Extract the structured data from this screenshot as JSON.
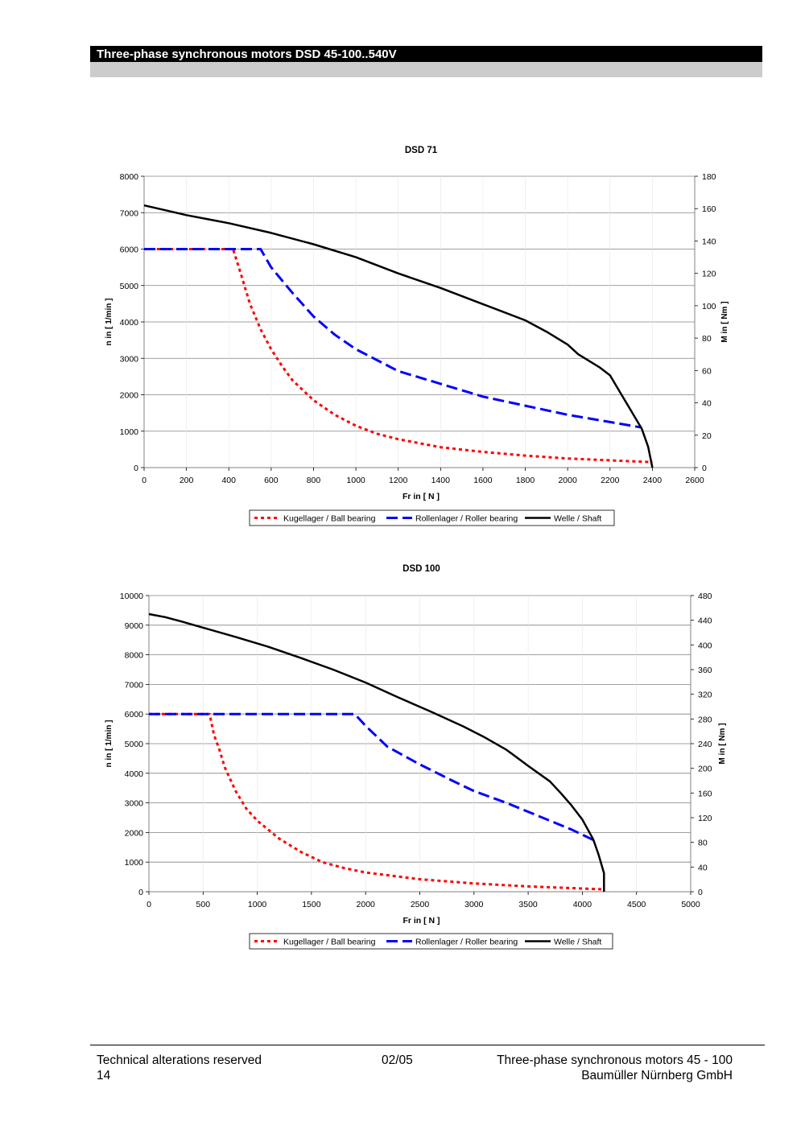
{
  "header": {
    "title": "Three-phase synchronous motors DSD 45-100..540V"
  },
  "footer": {
    "left_line1": "Technical alterations reserved",
    "left_line2": "14",
    "center": "02/05",
    "right_line1": "Three-phase synchronous motors 45 - 100",
    "right_line2": "Baumüller Nürnberg GmbH"
  },
  "colors": {
    "ball": "#ff0000",
    "roller": "#0000ff",
    "shaft": "#000000",
    "grid": "#808080"
  },
  "chart_data": [
    {
      "type": "line",
      "title": "DSD 71",
      "xlabel": "Fr in [ N ]",
      "ylabel": "n in [ 1/min ]",
      "y2label": "M in [ Nm ]",
      "xlim": [
        0,
        2600
      ],
      "ylim": [
        0,
        8000
      ],
      "y2lim": [
        0,
        180
      ],
      "xticks": [
        0,
        200,
        400,
        600,
        800,
        1000,
        1200,
        1400,
        1600,
        1800,
        2000,
        2200,
        2400,
        2600
      ],
      "yticks": [
        0,
        1000,
        2000,
        3000,
        4000,
        5000,
        6000,
        7000,
        8000
      ],
      "y2ticks": [
        0,
        20,
        40,
        60,
        80,
        100,
        120,
        140,
        160,
        180
      ],
      "grid": "horizontal",
      "legend": "bottom",
      "series": [
        {
          "name": "Kugellager / Ball bearing",
          "style": "dotted",
          "color": "#ff0000",
          "x": [
            0,
            420,
            450,
            500,
            550,
            600,
            650,
            700,
            800,
            900,
            1000,
            1100,
            1200,
            1400,
            1600,
            1800,
            2000,
            2200,
            2400
          ],
          "y": [
            6000,
            6000,
            5450,
            4500,
            3800,
            3250,
            2800,
            2400,
            1850,
            1450,
            1150,
            930,
            780,
            560,
            430,
            330,
            250,
            200,
            150
          ]
        },
        {
          "name": "Rollenlager / Roller bearing",
          "style": "dashed",
          "color": "#0000ff",
          "x": [
            0,
            550,
            600,
            650,
            700,
            800,
            900,
            1000,
            1200,
            1400,
            1600,
            1800,
            2000,
            2200,
            2350
          ],
          "y": [
            6000,
            6000,
            5500,
            5150,
            4800,
            4150,
            3650,
            3250,
            2650,
            2300,
            1950,
            1700,
            1450,
            1250,
            1100
          ]
        },
        {
          "name": "Welle / Shaft",
          "style": "solid",
          "color": "#000000",
          "axis": "right",
          "x": [
            0,
            100,
            200,
            400,
            600,
            800,
            1000,
            1200,
            1400,
            1600,
            1800,
            1900,
            2000,
            2050,
            2150,
            2200,
            2250,
            2300,
            2350,
            2380,
            2400
          ],
          "y": [
            162,
            159,
            156,
            151,
            145,
            138,
            130,
            120,
            111,
            101,
            91,
            84,
            76,
            70,
            62,
            57,
            46,
            35,
            24,
            13,
            0
          ]
        }
      ]
    },
    {
      "type": "line",
      "title": "DSD 100",
      "xlabel": "Fr in [ N ]",
      "ylabel": "n in [ 1/min ]",
      "y2label": "M in [ Nm ]",
      "xlim": [
        0,
        5000
      ],
      "ylim": [
        0,
        10000
      ],
      "y2lim": [
        0,
        480
      ],
      "xticks": [
        0,
        500,
        1000,
        1500,
        2000,
        2500,
        3000,
        3500,
        4000,
        4500,
        5000
      ],
      "yticks": [
        0,
        1000,
        2000,
        3000,
        4000,
        5000,
        6000,
        7000,
        8000,
        9000,
        10000
      ],
      "y2ticks": [
        0,
        40,
        80,
        120,
        160,
        200,
        240,
        280,
        320,
        360,
        400,
        440,
        480
      ],
      "grid": "horizontal",
      "legend": "bottom",
      "series": [
        {
          "name": "Kugellager / Ball bearing",
          "style": "dotted",
          "color": "#ff0000",
          "x": [
            0,
            560,
            600,
            650,
            700,
            800,
            900,
            1000,
            1200,
            1400,
            1600,
            1800,
            2000,
            2500,
            3000,
            3500,
            4000,
            4200
          ],
          "y": [
            6000,
            6000,
            5300,
            4800,
            4200,
            3400,
            2800,
            2400,
            1800,
            1350,
            1000,
            800,
            650,
            420,
            280,
            180,
            110,
            80
          ]
        },
        {
          "name": "Rollenlager / Roller bearing",
          "style": "dashed",
          "color": "#0000ff",
          "x": [
            0,
            1900,
            2000,
            2200,
            2500,
            2800,
            3000,
            3300,
            3600,
            3900,
            4100
          ],
          "y": [
            6000,
            6000,
            5600,
            4900,
            4300,
            3750,
            3400,
            3000,
            2550,
            2100,
            1750
          ]
        },
        {
          "name": "Welle / Shaft",
          "style": "solid",
          "color": "#000000",
          "axis": "right",
          "x": [
            0,
            150,
            300,
            500,
            800,
            1100,
            1400,
            1700,
            2000,
            2300,
            2600,
            2900,
            3100,
            3300,
            3500,
            3700,
            3800,
            3900,
            4000,
            4100,
            4150,
            4200,
            4200
          ],
          "y": [
            450,
            445,
            438,
            428,
            413,
            397,
            379,
            360,
            339,
            315,
            292,
            268,
            250,
            230,
            204,
            179,
            160,
            140,
            117,
            85,
            60,
            30,
            0
          ]
        }
      ]
    }
  ]
}
